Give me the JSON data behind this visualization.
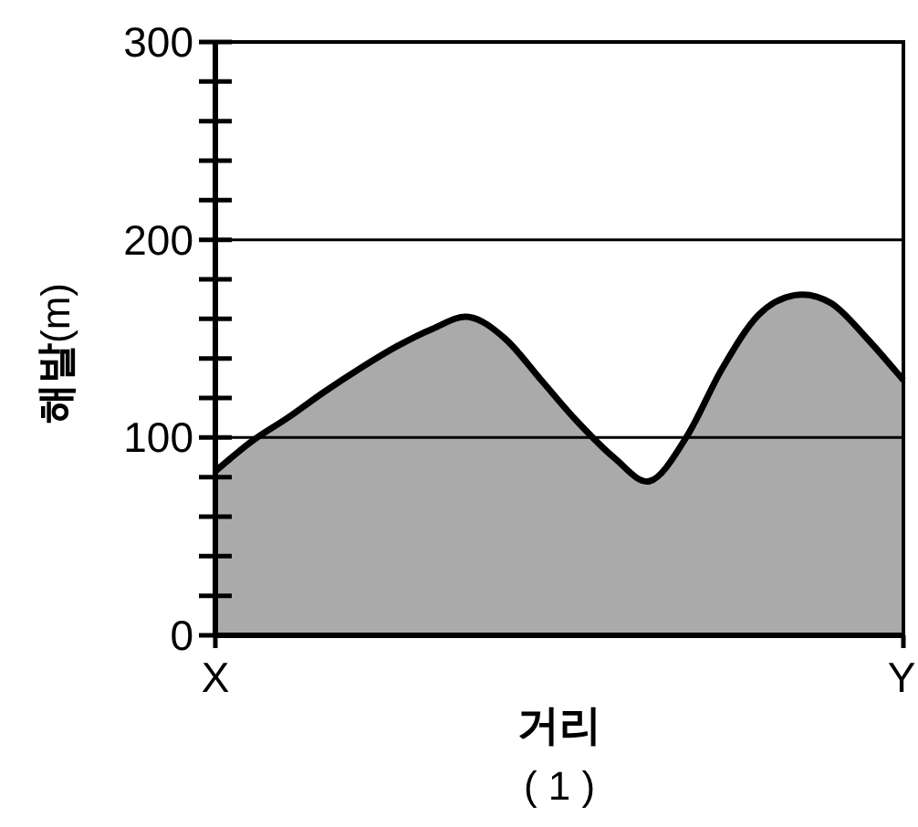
{
  "chart_data": {
    "type": "area",
    "xlabel": "거리",
    "ylabel": "**해발**(m)",
    "annotations": [
      "( 1 )"
    ],
    "categories": [
      "X",
      null,
      null,
      null,
      null,
      null,
      null,
      null,
      null,
      null,
      null,
      null,
      null,
      null,
      null,
      null,
      null,
      null,
      null,
      "Y"
    ],
    "values": [
      83,
      98,
      110,
      123,
      135,
      146,
      155,
      161,
      150,
      129,
      108,
      90,
      78,
      100,
      135,
      162,
      172,
      168,
      150,
      129
    ],
    "color": "#aaaaaa",
    "ylim": [
      0,
      300
    ],
    "yticks": [
      0,
      100,
      200,
      300
    ],
    "grid": "y"
  }
}
